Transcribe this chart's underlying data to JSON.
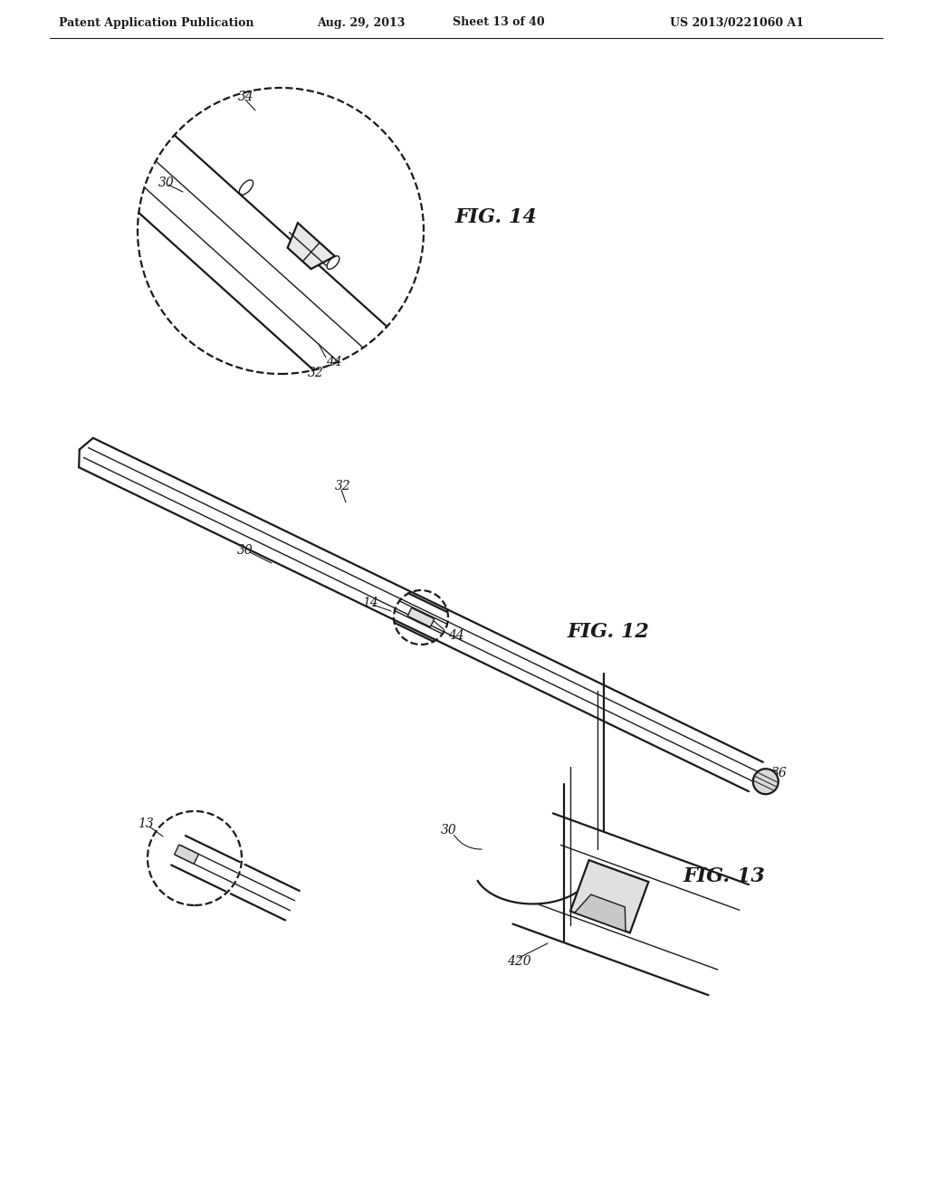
{
  "background_color": "#ffffff",
  "header_left": "Patent Application Publication",
  "header_mid": "Aug. 29, 2013  Sheet 13 of 40",
  "header_right": "US 2013/0221060 A1",
  "fig12_label": "FIG. 12",
  "fig13_label": "FIG. 13",
  "fig14_label": "FIG. 14",
  "line_color": "#1a1a1a",
  "lw": 1.6,
  "tlw": 1.0,
  "thw": 2.2
}
